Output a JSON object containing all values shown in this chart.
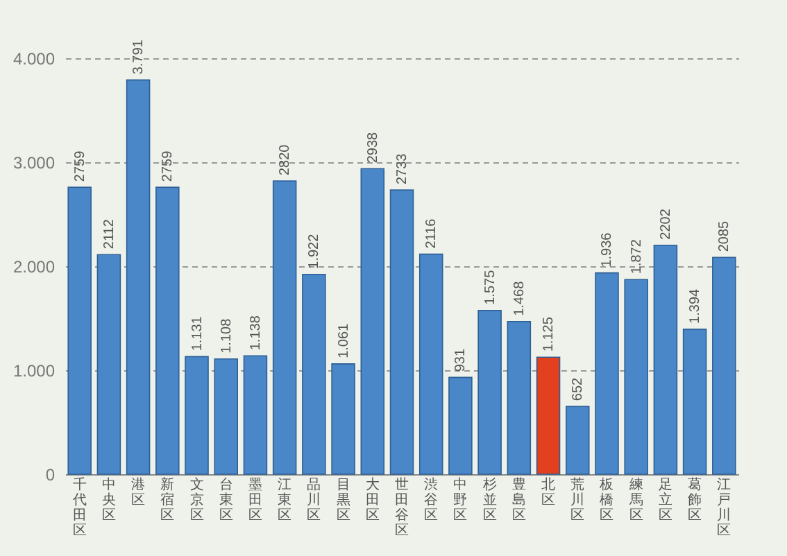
{
  "chart_data": {
    "type": "bar",
    "categories": [
      "千代田区",
      "中央区",
      "港区",
      "新宿区",
      "文京区",
      "台東区",
      "墨田区",
      "江東区",
      "品川区",
      "目黒区",
      "大田区",
      "世田谷区",
      "渋谷区",
      "中野区",
      "杉並区",
      "豊島区",
      "北区",
      "荒川区",
      "板橋区",
      "練馬区",
      "足立区",
      "葛飾区",
      "江戸川区"
    ],
    "values": [
      2759,
      2112,
      3791,
      2759,
      1131,
      1108,
      1138,
      2820,
      1922,
      1061,
      2938,
      2733,
      2116,
      931,
      1575,
      1468,
      1125,
      652,
      1936,
      1872,
      2202,
      1394,
      2085
    ],
    "value_labels": [
      "2759",
      "2112",
      "3.791",
      "2759",
      "1.131",
      "1.108",
      "1.138",
      "2820",
      "1.922",
      "1.061",
      "2938",
      "2733",
      "2116",
      "931",
      "1.575",
      "1.468",
      "1.125",
      "652",
      "1.936",
      "1.872",
      "2202",
      "1.394",
      "2085"
    ],
    "colors": [
      "#4a87c9",
      "#4a87c9",
      "#4a87c9",
      "#4a87c9",
      "#4a87c9",
      "#4a87c9",
      "#4a87c9",
      "#4a87c9",
      "#4a87c9",
      "#4a87c9",
      "#4a87c9",
      "#4a87c9",
      "#4a87c9",
      "#4a87c9",
      "#4a87c9",
      "#4a87c9",
      "#e2401f",
      "#4a87c9",
      "#4a87c9",
      "#4a87c9",
      "#4a87c9",
      "#4a87c9",
      "#4a87c9"
    ],
    "ylim": [
      0,
      4000
    ],
    "yticks": [
      0,
      {
        "value": 1000,
        "label": "1.000"
      },
      {
        "value": 2000,
        "label": "2.000"
      },
      {
        "value": 3000,
        "label": "3.000"
      },
      {
        "value": 4000,
        "label": "4.000"
      }
    ],
    "grid": "y"
  }
}
